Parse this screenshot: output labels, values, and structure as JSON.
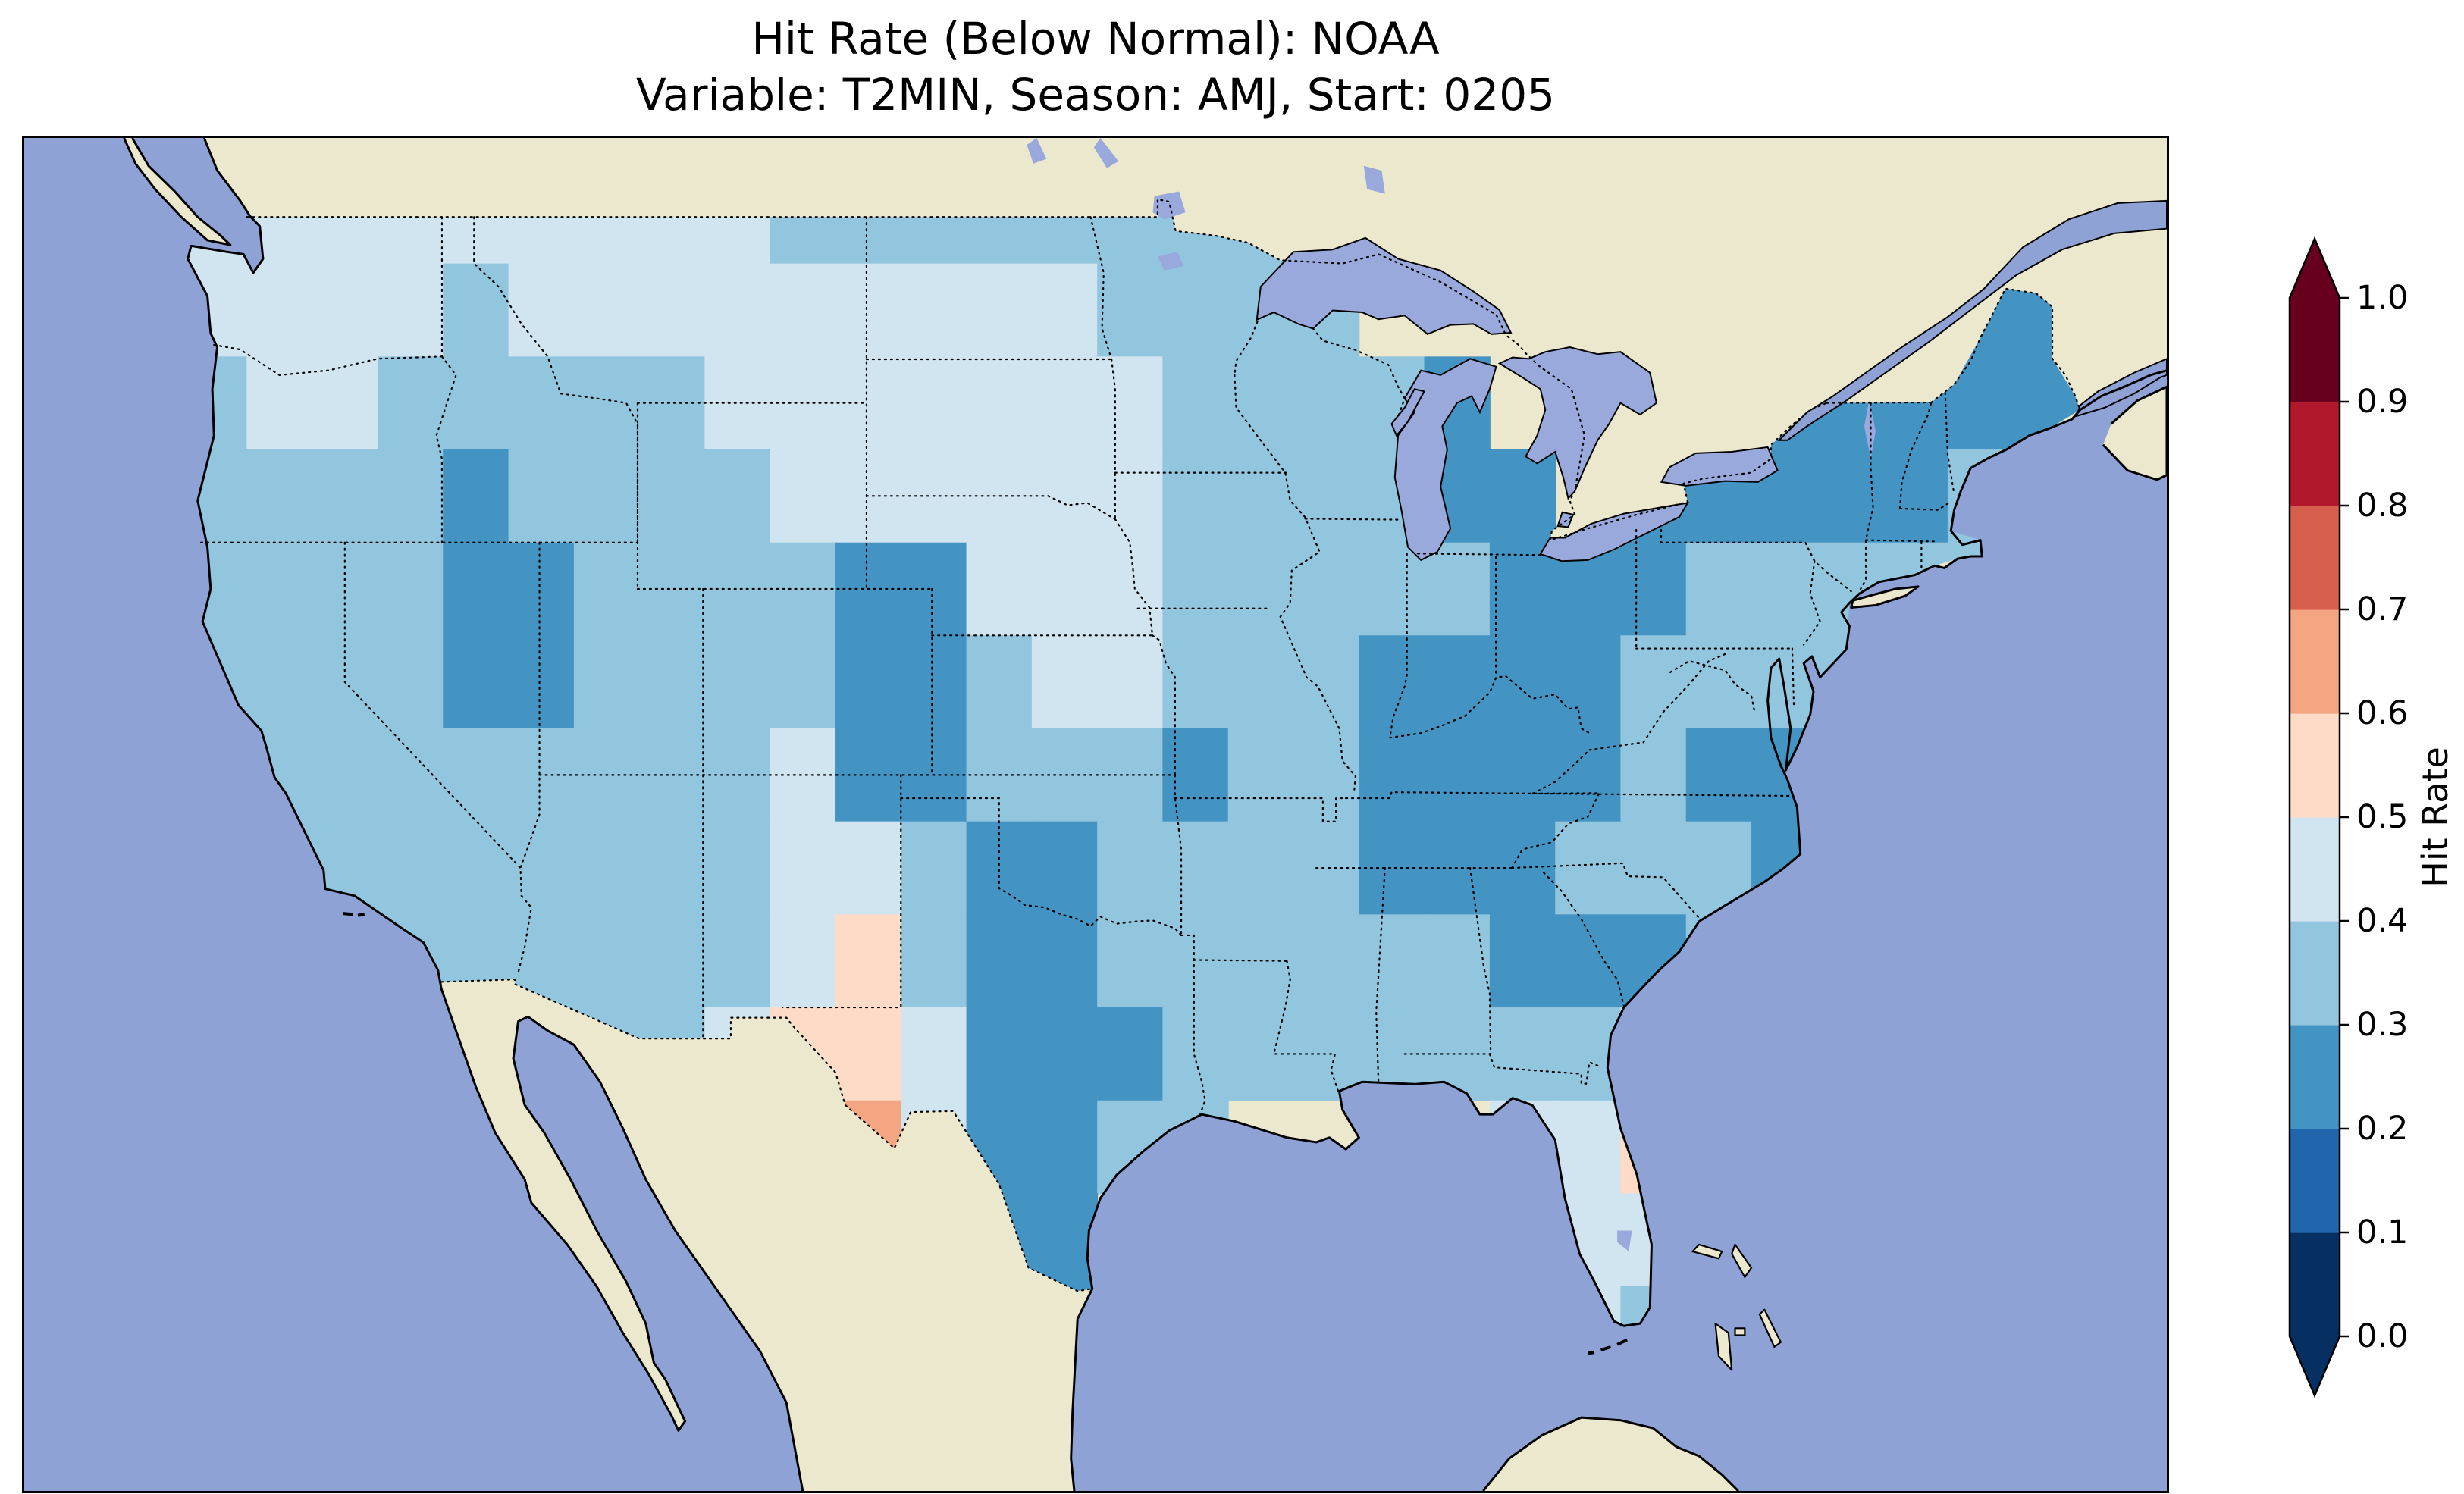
{
  "figure": {
    "title_line1": "Hit Rate (Below Normal): NOAA",
    "title_line2": "Variable: T2MIN, Season: AMJ, Start: 0205"
  },
  "map": {
    "ocean_color": "#8fa2d6",
    "land_color": "#ece8cd",
    "lake_color": "#99a9db"
  },
  "colorbar": {
    "label": "Hit Rate",
    "ticks_top_to_bottom": [
      "1.0",
      "0.9",
      "0.8",
      "0.7",
      "0.6",
      "0.5",
      "0.4",
      "0.3",
      "0.2",
      "0.1",
      "0.0"
    ],
    "bin_colors_low_to_high": [
      "#053061",
      "#2166ac",
      "#4393c3",
      "#92c5de",
      "#d1e5f0",
      "#fddbc7",
      "#f4a582",
      "#d6604d",
      "#b2182b",
      "#67001f"
    ],
    "under_color": "#053061",
    "over_color": "#67001f",
    "extend": "both"
  },
  "chart_data": {
    "type": "heatmap",
    "title": "Hit Rate (Below Normal): NOAA",
    "subtitle": "Variable: T2MIN, Season: AMJ, Start: 0205",
    "metric": "Hit Rate (Below Normal)",
    "source": "NOAA",
    "variable": "T2MIN",
    "season": "AMJ",
    "start": "0205",
    "colorbar_label": "Hit Rate",
    "value_range": [
      0.0,
      1.0
    ],
    "bin_width": 0.1,
    "colormap": "RdBu_r binned at 0.1 steps, extended both ends",
    "region": "Contiguous United States",
    "grid": {
      "lon_min": -125,
      "lon_max": -67,
      "lat_min": 24,
      "lat_max": 50,
      "cell_deg": 2,
      "rows_north_to_south": [
        [
          0.45,
          0.45,
          0.45,
          0.45,
          0.45,
          0.45,
          0.45,
          0.45,
          0.45,
          0.35,
          0.35,
          0.35,
          0.35,
          0.35,
          0.35,
          0.35,
          0.35,
          null,
          null,
          null,
          null,
          null,
          null,
          null,
          null,
          null,
          null,
          0.25,
          0.25
        ],
        [
          0.45,
          0.45,
          0.45,
          0.45,
          0.35,
          0.45,
          0.45,
          0.45,
          0.45,
          0.45,
          0.45,
          0.45,
          0.45,
          0.45,
          0.35,
          0.35,
          0.35,
          0.35,
          null,
          null,
          null,
          null,
          null,
          null,
          null,
          null,
          null,
          0.25,
          0.25
        ],
        [
          0.35,
          0.45,
          0.45,
          0.35,
          0.35,
          0.35,
          0.35,
          0.35,
          0.45,
          0.45,
          0.45,
          0.45,
          0.45,
          0.45,
          0.45,
          0.35,
          0.35,
          0.35,
          0.35,
          0.25,
          null,
          null,
          null,
          null,
          0.25,
          0.25,
          0.25,
          0.25,
          0.25
        ],
        [
          0.35,
          0.35,
          0.35,
          0.35,
          0.25,
          0.35,
          0.35,
          0.35,
          0.35,
          0.45,
          0.45,
          0.45,
          0.45,
          0.45,
          0.45,
          0.35,
          0.35,
          0.35,
          0.35,
          0.25,
          0.25,
          null,
          0.25,
          0.25,
          0.25,
          0.25,
          0.25,
          0.35,
          null
        ],
        [
          0.35,
          0.35,
          0.35,
          0.35,
          0.25,
          0.25,
          0.35,
          0.35,
          0.35,
          0.35,
          0.25,
          0.25,
          0.45,
          0.45,
          0.45,
          0.35,
          0.35,
          0.35,
          0.35,
          0.35,
          0.25,
          0.25,
          0.25,
          0.35,
          0.35,
          0.35,
          0.35,
          0.35,
          null
        ],
        [
          0.35,
          0.35,
          0.35,
          0.35,
          0.25,
          0.25,
          0.35,
          0.35,
          0.35,
          0.35,
          0.25,
          0.25,
          0.35,
          0.45,
          0.45,
          0.35,
          0.35,
          0.35,
          0.25,
          0.25,
          0.25,
          0.25,
          0.35,
          0.35,
          0.35,
          0.35,
          null,
          null,
          null
        ],
        [
          0.35,
          0.35,
          0.35,
          0.35,
          0.35,
          0.35,
          0.35,
          0.35,
          0.35,
          0.45,
          0.25,
          0.25,
          0.35,
          0.35,
          0.35,
          0.25,
          0.35,
          0.35,
          0.25,
          0.25,
          0.25,
          0.25,
          0.35,
          0.25,
          0.25,
          null,
          null,
          null,
          null
        ],
        [
          0.35,
          0.35,
          0.35,
          0.35,
          0.35,
          0.35,
          0.35,
          0.35,
          0.35,
          0.45,
          0.45,
          0.35,
          0.25,
          0.25,
          0.35,
          0.35,
          0.35,
          0.35,
          0.25,
          0.25,
          0.25,
          0.35,
          0.35,
          0.35,
          0.25,
          null,
          null,
          null,
          null
        ],
        [
          null,
          null,
          null,
          0.35,
          0.35,
          0.35,
          0.35,
          0.35,
          0.35,
          0.45,
          0.55,
          0.35,
          0.25,
          0.25,
          0.35,
          0.35,
          0.35,
          0.35,
          0.35,
          0.35,
          0.25,
          0.25,
          0.25,
          0.35,
          null,
          null,
          null,
          null,
          null
        ],
        [
          null,
          null,
          null,
          null,
          0.35,
          0.35,
          0.35,
          0.35,
          0.45,
          0.55,
          0.55,
          0.45,
          0.25,
          0.25,
          0.25,
          0.35,
          0.35,
          0.35,
          0.35,
          0.35,
          0.35,
          0.35,
          0.45,
          null,
          null,
          null,
          null,
          null,
          null
        ],
        [
          null,
          null,
          null,
          null,
          null,
          null,
          null,
          null,
          null,
          null,
          0.65,
          0.45,
          0.25,
          0.25,
          0.35,
          0.35,
          null,
          null,
          null,
          null,
          0.45,
          0.45,
          0.55,
          null,
          null,
          null,
          null,
          null,
          null
        ],
        [
          null,
          null,
          null,
          null,
          null,
          null,
          null,
          null,
          null,
          null,
          null,
          null,
          0.25,
          0.25,
          null,
          null,
          null,
          null,
          null,
          null,
          null,
          0.45,
          0.45,
          null,
          null,
          null,
          null,
          null,
          null
        ],
        [
          null,
          null,
          null,
          null,
          null,
          null,
          null,
          null,
          null,
          null,
          null,
          null,
          null,
          0.25,
          null,
          null,
          null,
          null,
          null,
          null,
          null,
          0.45,
          0.35,
          null,
          null,
          null,
          null,
          null,
          null
        ]
      ]
    }
  }
}
